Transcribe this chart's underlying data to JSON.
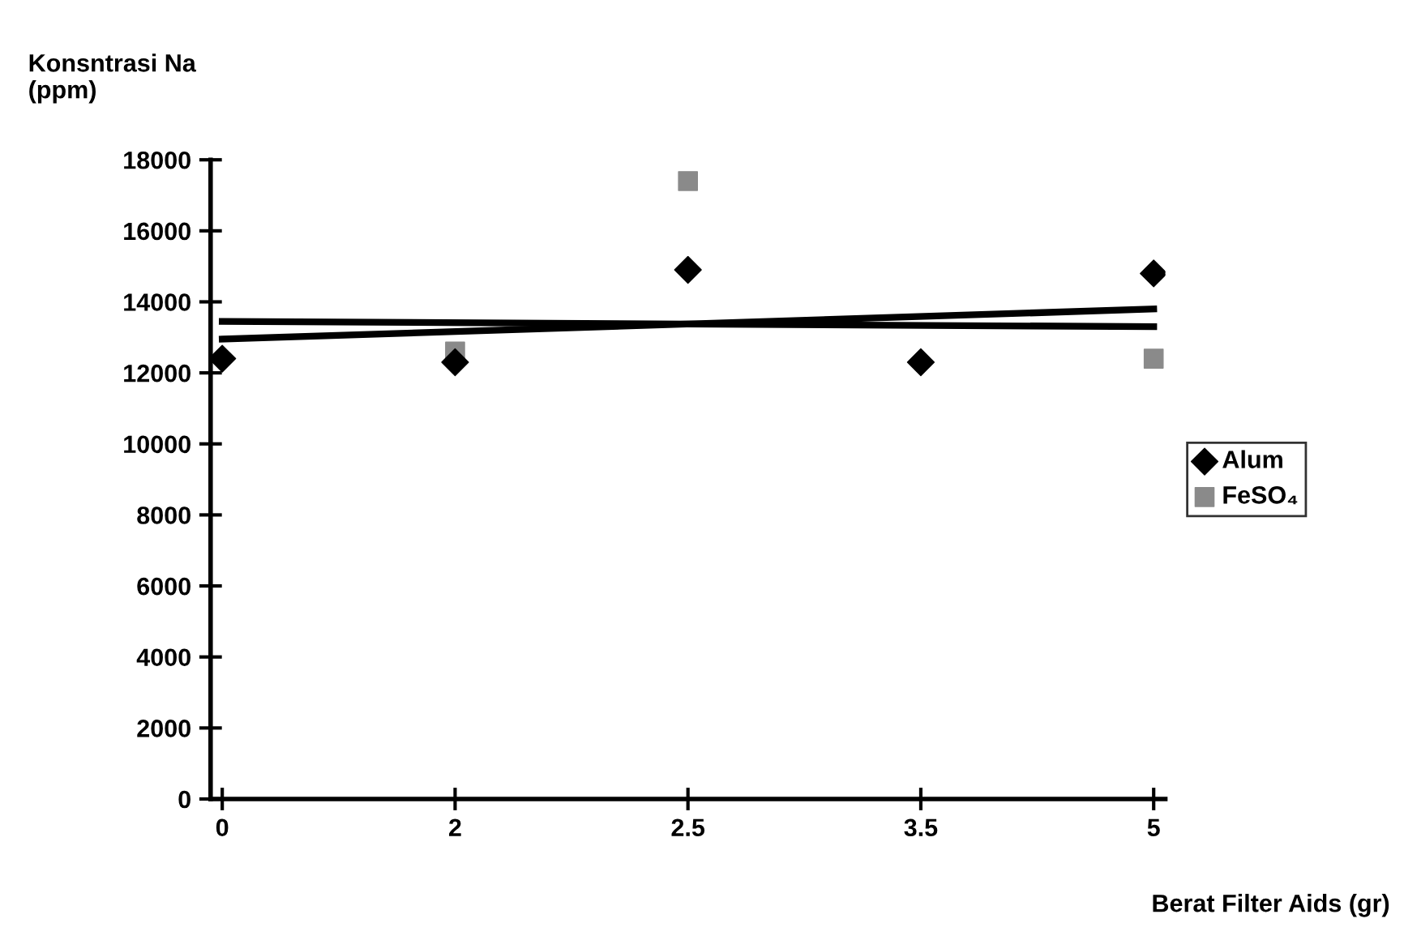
{
  "chart_data": {
    "type": "scatter",
    "ylabel": "Konsntrasi Na\n(ppm)",
    "xlabel": "Berat Filter Aids (gr)",
    "categories": [
      "0",
      "2",
      "2.5",
      "3.5",
      "5"
    ],
    "ylim": [
      0,
      18000
    ],
    "yticks": [
      0,
      2000,
      4000,
      6000,
      8000,
      10000,
      12000,
      14000,
      16000,
      18000
    ],
    "grid": false,
    "legend": "right",
    "series": [
      {
        "name": "Alum",
        "color": "#000000",
        "marker": "diamond",
        "values": [
          12400,
          12300,
          14900,
          12300,
          14800
        ]
      },
      {
        "name": "FeSO₄",
        "color": "#8a8a8a",
        "marker": "square",
        "values": [
          null,
          12600,
          17400,
          null,
          12400
        ]
      },
      {
        "type": "line",
        "color": "#000000",
        "x": [
          "0",
          "5"
        ],
        "values": [
          12950,
          13800
        ]
      },
      {
        "type": "line",
        "color": "#000000",
        "x": [
          "0",
          "5"
        ],
        "values": [
          13450,
          13300
        ]
      }
    ]
  }
}
